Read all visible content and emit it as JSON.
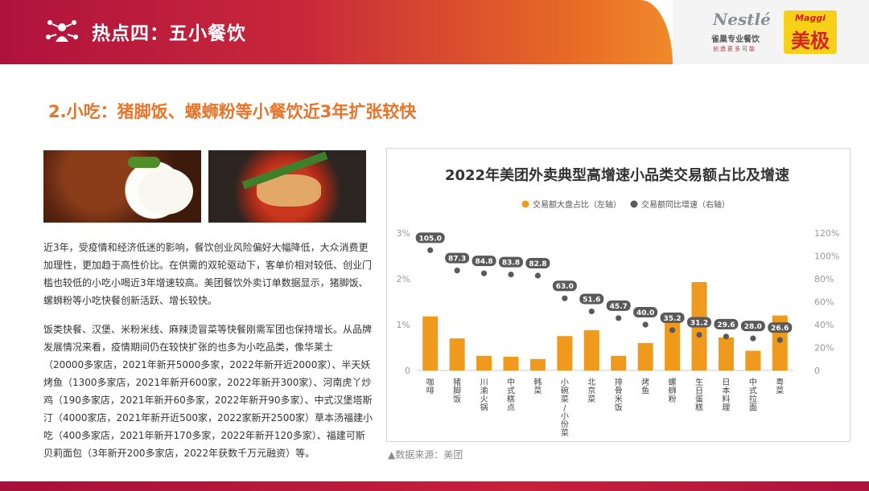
{
  "header": {
    "title": "热点四：五小餐饮",
    "logo_nestle_name": "Nestlé",
    "logo_nestle_cn": "雀巢专业餐饮",
    "logo_nestle_slogan": "创造更多可能",
    "logo_maggi_en": "Maggi",
    "logo_maggi_cn": "美极"
  },
  "subtitle": "2.小吃：猪脚饭、螺蛳粉等小餐饮近3年扩张较快",
  "paragraphs": [
    "近3年，受疫情和经济低迷的影响，餐饮创业风险偏好大幅降低，大众消费更加理性，更加趋于高性价比。在供需的双轮驱动下，客单价相对较低、创业门槛也较低的小吃小喝近3年增速较高。美团餐饮外卖订单数据显示，猪脚饭、 螺蛳粉等小吃快餐创新活跃、增长较快。",
    "饭类快餐、汉堡、米粉米线、麻辣烫冒菜等快餐刚需军团也保持增长。从品牌发展情况来看，疫情期间仍在较快扩张的也多为小吃品类，像华莱士（20000多家店，2021年新开5000多家，2022年新开近2000家）、半天妖烤鱼（1300多家店，2021年新开600家，2022年新开300家）、河南虎丫炒鸡（190多家店，2021年新开60多家，2022年新开90多家）、中式汉堡塔斯汀（4000家店，2021年新开近500家，2022家新开2500家）草本汤福建小吃（400多家店，2021年新开170多家，2022年新开120多家）、福建可斯贝莉面包（3年新开200多家店，2022年获数千万元融资）等。"
  ],
  "source": "▲数据来源：美团",
  "colors": {
    "bar": "#ef9a1c",
    "dot": "#5a5a5a",
    "accent": "#e8742a",
    "brand_red": "#b0123e"
  },
  "chart_data": {
    "type": "bar",
    "title": "2022年美团外卖典型高增速小品类交易额占比及增速",
    "categories": [
      "咖啡",
      "猪脚饭",
      "川渝火锅",
      "中式糕点",
      "韩菜",
      "小碗菜/小份菜",
      "北京菜",
      "排骨米饭",
      "烤鱼",
      "螺蛳粉",
      "生日蛋糕",
      "日本料理",
      "中式拉面",
      "粤菜"
    ],
    "series": [
      {
        "name": "交易额大盘占比（左轴）",
        "kind": "bar",
        "axis": "left",
        "values": [
          1.18,
          0.7,
          0.32,
          0.3,
          0.25,
          0.75,
          0.88,
          0.32,
          0.6,
          1.05,
          1.93,
          0.72,
          0.43,
          1.2
        ]
      },
      {
        "name": "交易额同比增速（右轴）",
        "kind": "dot",
        "axis": "right",
        "values": [
          105.0,
          87.3,
          84.8,
          83.8,
          82.8,
          63.0,
          51.6,
          45.7,
          40.0,
          35.2,
          31.2,
          29.6,
          28.0,
          26.6
        ],
        "labels": [
          "105.0",
          "87.3",
          "84.8",
          "83.8",
          "82.8",
          "63.0",
          "51.6",
          "45.7",
          "40.0",
          "35.2",
          "31.2",
          "29.6",
          "28.0",
          "26.6"
        ]
      }
    ],
    "y_left": {
      "ylim": [
        0,
        3
      ],
      "ticks": [
        "0",
        "1%",
        "2%",
        "3%"
      ],
      "tick_values": [
        0,
        1,
        2,
        3
      ]
    },
    "y_right": {
      "ylim": [
        0,
        120
      ],
      "ticks": [
        "0",
        "20%",
        "40%",
        "60%",
        "80%",
        "100%",
        "120%"
      ],
      "tick_values": [
        0,
        20,
        40,
        60,
        80,
        100,
        120
      ]
    },
    "legend_position": "top-center",
    "grid": false
  }
}
